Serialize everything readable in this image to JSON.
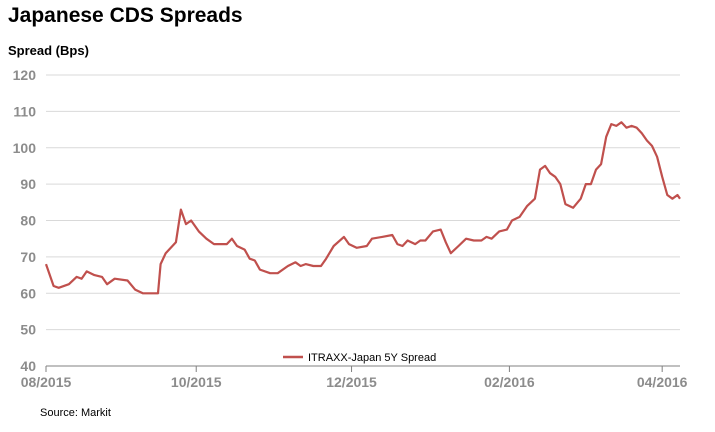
{
  "chart_data": {
    "type": "line",
    "title": "Japanese CDS Spreads",
    "ylabel": "Spread (Bps)",
    "xlabel": "",
    "ylim": [
      40,
      120
    ],
    "yticks": [
      40,
      50,
      60,
      70,
      80,
      90,
      100,
      110,
      120
    ],
    "xlim": [
      "2015-08-03",
      "2016-04-08"
    ],
    "xticks": [
      {
        "label": "08/2015",
        "date": "2015-08-03"
      },
      {
        "label": "10/2015",
        "date": "2015-10-01"
      },
      {
        "label": "12/2015",
        "date": "2015-12-01"
      },
      {
        "label": "02/2016",
        "date": "2016-02-01"
      },
      {
        "label": "04/2016",
        "date": "2016-04-01"
      }
    ],
    "grid": "horizontal",
    "legend_position": "bottom-center",
    "source": "Source: Markit",
    "series": [
      {
        "name": "ITRAXX-Japan 5Y Spread",
        "color": "#c0504d",
        "points": [
          [
            "2015-08-03",
            68
          ],
          [
            "2015-08-06",
            62
          ],
          [
            "2015-08-08",
            61.5
          ],
          [
            "2015-08-12",
            62.5
          ],
          [
            "2015-08-15",
            64.5
          ],
          [
            "2015-08-17",
            64
          ],
          [
            "2015-08-19",
            66
          ],
          [
            "2015-08-22",
            65
          ],
          [
            "2015-08-25",
            64.5
          ],
          [
            "2015-08-27",
            62.5
          ],
          [
            "2015-08-30",
            64
          ],
          [
            "2015-09-04",
            63.5
          ],
          [
            "2015-09-07",
            61
          ],
          [
            "2015-09-10",
            60
          ],
          [
            "2015-09-13",
            60
          ],
          [
            "2015-09-16",
            60
          ],
          [
            "2015-09-17",
            68
          ],
          [
            "2015-09-19",
            71
          ],
          [
            "2015-09-23",
            74
          ],
          [
            "2015-09-25",
            83
          ],
          [
            "2015-09-27",
            79
          ],
          [
            "2015-09-29",
            80
          ],
          [
            "2015-10-02",
            77
          ],
          [
            "2015-10-05",
            75
          ],
          [
            "2015-10-08",
            73.5
          ],
          [
            "2015-10-13",
            73.5
          ],
          [
            "2015-10-15",
            75
          ],
          [
            "2015-10-17",
            73
          ],
          [
            "2015-10-20",
            72
          ],
          [
            "2015-10-22",
            69.5
          ],
          [
            "2015-10-24",
            69
          ],
          [
            "2015-10-26",
            66.5
          ],
          [
            "2015-10-30",
            65.5
          ],
          [
            "2015-11-02",
            65.5
          ],
          [
            "2015-11-06",
            67.5
          ],
          [
            "2015-11-09",
            68.5
          ],
          [
            "2015-11-11",
            67.5
          ],
          [
            "2015-11-13",
            68
          ],
          [
            "2015-11-16",
            67.5
          ],
          [
            "2015-11-19",
            67.5
          ],
          [
            "2015-11-21",
            69.5
          ],
          [
            "2015-11-24",
            73
          ],
          [
            "2015-11-28",
            75.5
          ],
          [
            "2015-11-30",
            73.5
          ],
          [
            "2015-12-03",
            72.5
          ],
          [
            "2015-12-07",
            73
          ],
          [
            "2015-12-09",
            75
          ],
          [
            "2015-12-13",
            75.5
          ],
          [
            "2015-12-17",
            76
          ],
          [
            "2015-12-19",
            73.5
          ],
          [
            "2015-12-21",
            73
          ],
          [
            "2015-12-23",
            74.5
          ],
          [
            "2015-12-26",
            73.5
          ],
          [
            "2015-12-28",
            74.5
          ],
          [
            "2015-12-30",
            74.5
          ],
          [
            "2016-01-02",
            77
          ],
          [
            "2016-01-05",
            77.5
          ],
          [
            "2016-01-07",
            74
          ],
          [
            "2016-01-09",
            71
          ],
          [
            "2016-01-12",
            73
          ],
          [
            "2016-01-15",
            75
          ],
          [
            "2016-01-18",
            74.5
          ],
          [
            "2016-01-21",
            74.5
          ],
          [
            "2016-01-23",
            75.5
          ],
          [
            "2016-01-25",
            75
          ],
          [
            "2016-01-28",
            77
          ],
          [
            "2016-01-31",
            77.5
          ],
          [
            "2016-02-02",
            80
          ],
          [
            "2016-02-05",
            81
          ],
          [
            "2016-02-08",
            84
          ],
          [
            "2016-02-11",
            86
          ],
          [
            "2016-02-13",
            94
          ],
          [
            "2016-02-15",
            95
          ],
          [
            "2016-02-17",
            93
          ],
          [
            "2016-02-19",
            92
          ],
          [
            "2016-02-21",
            90
          ],
          [
            "2016-02-23",
            84.5
          ],
          [
            "2016-02-26",
            83.5
          ],
          [
            "2016-02-29",
            86
          ],
          [
            "2016-03-02",
            90
          ],
          [
            "2016-03-04",
            90
          ],
          [
            "2016-03-06",
            94
          ],
          [
            "2016-03-08",
            95.5
          ],
          [
            "2016-03-10",
            103
          ],
          [
            "2016-03-12",
            106.5
          ],
          [
            "2016-03-14",
            106
          ],
          [
            "2016-03-16",
            107
          ],
          [
            "2016-03-18",
            105.5
          ],
          [
            "2016-03-20",
            106
          ],
          [
            "2016-03-22",
            105.5
          ],
          [
            "2016-03-24",
            104
          ],
          [
            "2016-03-26",
            102
          ],
          [
            "2016-03-28",
            100.5
          ],
          [
            "2016-03-30",
            97.5
          ],
          [
            "2016-04-01",
            92
          ],
          [
            "2016-04-03",
            87
          ],
          [
            "2016-04-05",
            86
          ],
          [
            "2016-04-07",
            87
          ],
          [
            "2016-04-08",
            86
          ]
        ]
      }
    ]
  }
}
